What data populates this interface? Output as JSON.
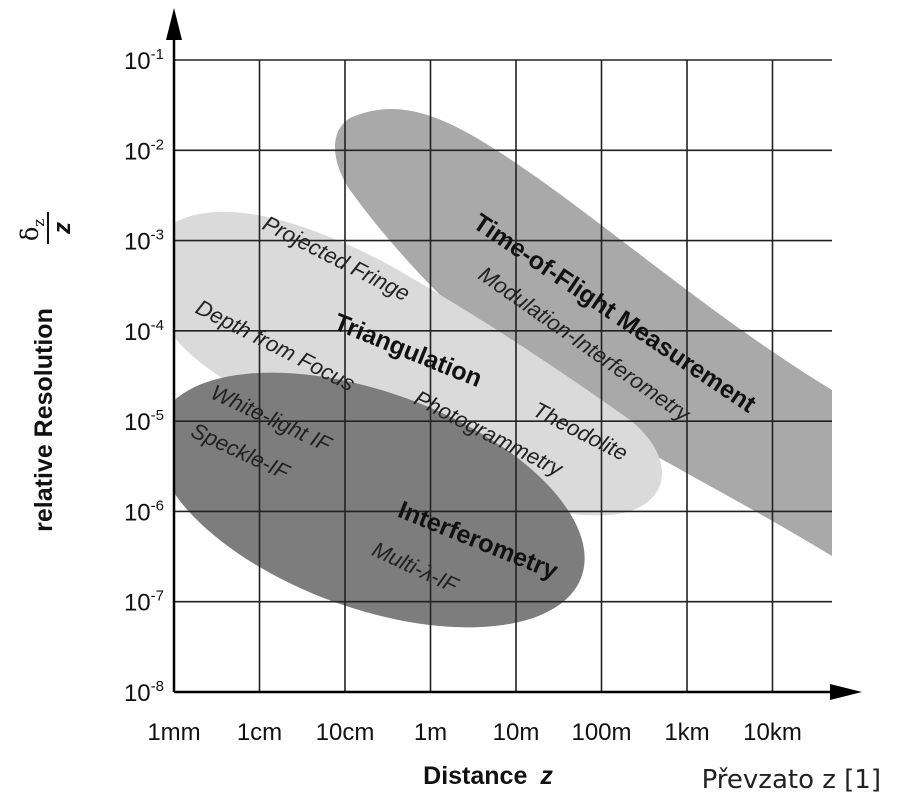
{
  "chart_data": {
    "type": "area",
    "xlabel_main": "Distance",
    "xlabel_var": "z",
    "ylabel": "relative Resolution",
    "ylabel_symbol_num": "δ",
    "ylabel_symbol_sub": "z",
    "ylabel_symbol_den": "z",
    "x_ticks": [
      "1mm",
      "1cm",
      "10cm",
      "1m",
      "10m",
      "100m",
      "1km",
      "10km"
    ],
    "y_ticks": [
      {
        "base": "10",
        "exp": "-1"
      },
      {
        "base": "10",
        "exp": "-2"
      },
      {
        "base": "10",
        "exp": "-3"
      },
      {
        "base": "10",
        "exp": "-4"
      },
      {
        "base": "10",
        "exp": "-5"
      },
      {
        "base": "10",
        "exp": "-6"
      },
      {
        "base": "10",
        "exp": "-7"
      },
      {
        "base": "10",
        "exp": "-8"
      }
    ],
    "regions": [
      {
        "title": "Time-of-Flight Measurement",
        "color": "#a9a9a9",
        "methods": [
          "Modulation-Interferometry"
        ]
      },
      {
        "title": "Triangulation",
        "color": "#dadada",
        "methods": [
          "Projected Fringe",
          "Depth from Focus",
          "Photogrammetry",
          "Theodolite"
        ]
      },
      {
        "title": "Interferometry",
        "color": "#7d7d7d",
        "methods": [
          "White-light IF",
          "Speckle-IF",
          "Multi-λ-IF"
        ]
      }
    ]
  },
  "credit": "Převzato z [1]"
}
